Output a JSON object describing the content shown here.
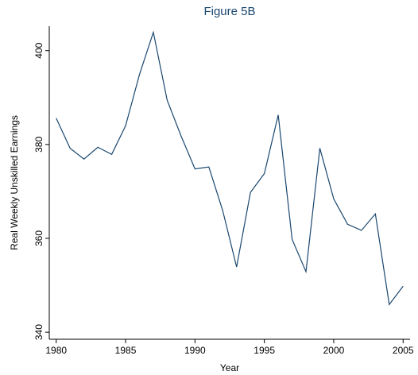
{
  "chart_data": {
    "type": "line",
    "title": "Figure 5B",
    "x_label": "Year",
    "y_label": "Real Weekly Unskilled Earnings",
    "x": [
      1980,
      1981,
      1982,
      1983,
      1984,
      1985,
      1986,
      1987,
      1988,
      1989,
      1990,
      1991,
      1992,
      1993,
      1994,
      1995,
      1996,
      1997,
      1998,
      1999,
      2000,
      2001,
      2002,
      2003,
      2004,
      2005
    ],
    "series": [
      {
        "name": "Real Weekly Unskilled Earnings",
        "color": "#1a476f",
        "values": [
          385.6,
          379.2,
          376.9,
          379.4,
          377.9,
          384.0,
          394.9,
          403.9,
          389.4,
          381.8,
          374.8,
          375.2,
          365.9,
          353.9,
          369.8,
          373.8,
          386.3,
          359.8,
          352.9,
          379.2,
          368.4,
          363.0,
          361.7,
          365.2,
          345.9,
          349.8
        ]
      }
    ],
    "xlim": [
      1979.5,
      2005.5
    ],
    "xticks": [
      1980,
      1985,
      1990,
      1995,
      2000,
      2005
    ],
    "ylim": [
      338.5,
      405.2
    ],
    "yticks": [
      340,
      360,
      380,
      400
    ]
  }
}
